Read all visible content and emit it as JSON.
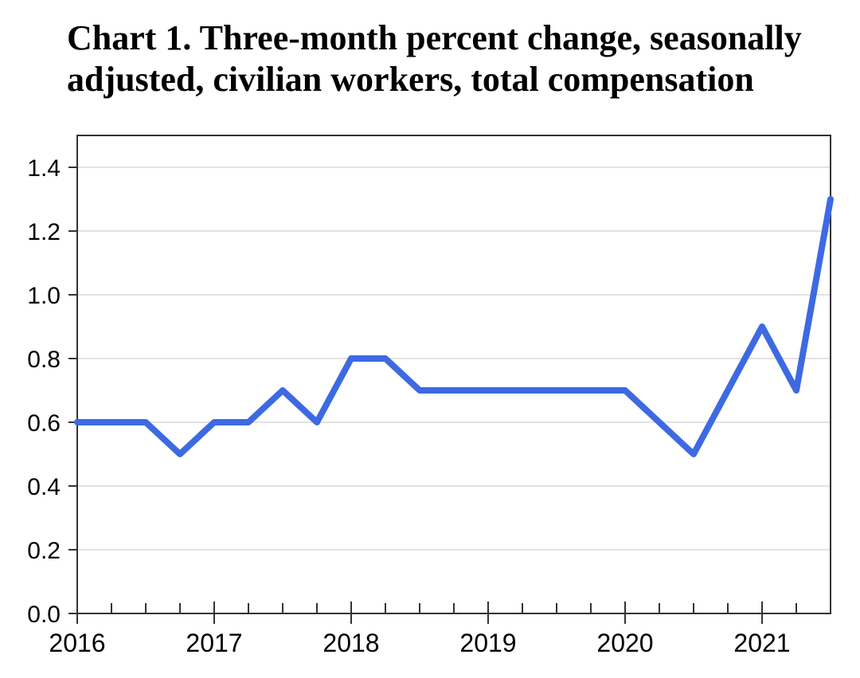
{
  "chart": {
    "title": "Chart 1. Three-month percent change, seasonally adjusted, civilian workers, total compensation",
    "title_lines": [
      "Chart 1. Three-month percent change, seasonally",
      "adjusted, civilian workers, total compensation"
    ]
  },
  "chart_data": {
    "type": "line",
    "title": "Chart 1. Three-month percent change, seasonally adjusted, civilian workers, total compensation",
    "series": [
      {
        "name": "Total compensation, civilian workers, 3-month percent change, seasonally adjusted",
        "x": [
          "2016 Q1",
          "2016 Q2",
          "2016 Q3",
          "2016 Q4",
          "2017 Q1",
          "2017 Q2",
          "2017 Q3",
          "2017 Q4",
          "2018 Q1",
          "2018 Q2",
          "2018 Q3",
          "2018 Q4",
          "2019 Q1",
          "2019 Q2",
          "2019 Q3",
          "2019 Q4",
          "2020 Q1",
          "2020 Q2",
          "2020 Q3",
          "2020 Q4",
          "2021 Q1",
          "2021 Q2",
          "2021 Q3"
        ],
        "values": [
          0.6,
          0.6,
          0.6,
          0.5,
          0.6,
          0.6,
          0.7,
          0.6,
          0.8,
          0.8,
          0.7,
          0.7,
          0.7,
          0.7,
          0.7,
          0.7,
          0.7,
          0.6,
          0.5,
          0.7,
          0.9,
          0.7,
          1.3
        ]
      }
    ],
    "xlabel": "",
    "ylabel": "",
    "x_axis": {
      "year_tick_labels": [
        "2016",
        "2017",
        "2018",
        "2019",
        "2020",
        "2021"
      ],
      "quarters_per_year": 4,
      "minor_ticks": "quarterly"
    },
    "y_axis": {
      "tick_labels": [
        "0.0",
        "0.2",
        "0.4",
        "0.6",
        "0.8",
        "1.0",
        "1.2",
        "1.4"
      ],
      "tick_values": [
        0.0,
        0.2,
        0.4,
        0.6,
        0.8,
        1.0,
        1.2,
        1.4
      ],
      "min": 0.0,
      "max": 1.5
    },
    "ylim": [
      0.0,
      1.5
    ],
    "grid": true,
    "legend": false,
    "colors": {
      "line": "#3D6AE2",
      "grid": "#D9D9D9",
      "axis": "#333333",
      "text": "#000000",
      "background": "#FFFFFF"
    }
  }
}
